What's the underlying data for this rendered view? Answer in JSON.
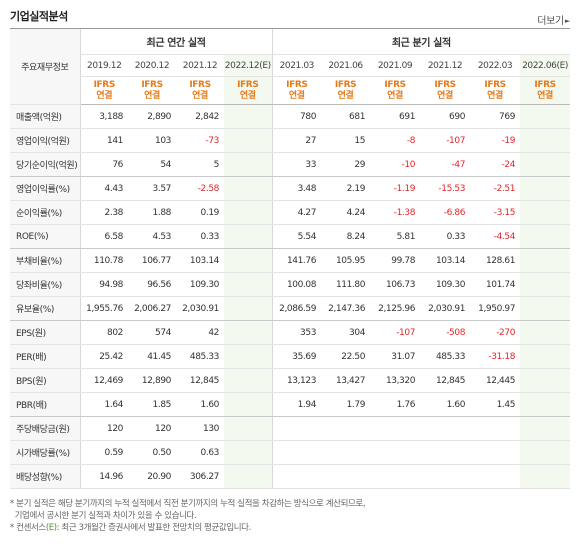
{
  "title": "기업실적분석",
  "more_label": "더보기",
  "header": {
    "row_head": "주요재무정보",
    "annual_label": "최근 연간 실적",
    "quarterly_label": "최근 분기 실적",
    "annual_periods": [
      "2019.12",
      "2020.12",
      "2021.12",
      "2022.12(E)"
    ],
    "quarterly_periods": [
      "2021.03",
      "2021.06",
      "2021.09",
      "2021.12",
      "2022.03",
      "2022.06(E)"
    ],
    "standard_top": "IFRS",
    "standard_bottom": "연결"
  },
  "rows": [
    {
      "label": "매출액(억원)",
      "values": [
        "3,188",
        "2,890",
        "2,842",
        "",
        "780",
        "681",
        "691",
        "690",
        "769",
        ""
      ]
    },
    {
      "label": "영업이익(억원)",
      "values": [
        "141",
        "103",
        "-73",
        "",
        "27",
        "15",
        "-8",
        "-107",
        "-19",
        ""
      ]
    },
    {
      "label": "당기순이익(억원)",
      "values": [
        "76",
        "54",
        "5",
        "",
        "33",
        "29",
        "-10",
        "-47",
        "-24",
        ""
      ]
    },
    {
      "label": "영업이익률(%)",
      "values": [
        "4.43",
        "3.57",
        "-2.58",
        "",
        "3.48",
        "2.19",
        "-1.19",
        "-15.53",
        "-2.51",
        ""
      ]
    },
    {
      "label": "순이익률(%)",
      "values": [
        "2.38",
        "1.88",
        "0.19",
        "",
        "4.27",
        "4.24",
        "-1.38",
        "-6.86",
        "-3.15",
        ""
      ]
    },
    {
      "label": "ROE(%)",
      "values": [
        "6.58",
        "4.53",
        "0.33",
        "",
        "5.54",
        "8.24",
        "5.81",
        "0.33",
        "-4.54",
        ""
      ]
    },
    {
      "label": "부채비율(%)",
      "values": [
        "110.78",
        "106.77",
        "103.14",
        "",
        "141.76",
        "105.95",
        "99.78",
        "103.14",
        "128.61",
        ""
      ]
    },
    {
      "label": "당좌비율(%)",
      "values": [
        "94.98",
        "96.56",
        "109.30",
        "",
        "100.08",
        "111.80",
        "106.73",
        "109.30",
        "101.74",
        ""
      ]
    },
    {
      "label": "유보율(%)",
      "values": [
        "1,955.76",
        "2,006.27",
        "2,030.91",
        "",
        "2,086.59",
        "2,147.36",
        "2,125.96",
        "2,030.91",
        "1,950.97",
        ""
      ]
    },
    {
      "label": "EPS(원)",
      "values": [
        "802",
        "574",
        "42",
        "",
        "353",
        "304",
        "-107",
        "-508",
        "-270",
        ""
      ]
    },
    {
      "label": "PER(배)",
      "values": [
        "25.42",
        "41.45",
        "485.33",
        "",
        "35.69",
        "22.50",
        "31.07",
        "485.33",
        "-31.18",
        ""
      ]
    },
    {
      "label": "BPS(원)",
      "values": [
        "12,469",
        "12,890",
        "12,845",
        "",
        "13,123",
        "13,427",
        "13,320",
        "12,845",
        "12,445",
        ""
      ]
    },
    {
      "label": "PBR(배)",
      "values": [
        "1.64",
        "1.85",
        "1.60",
        "",
        "1.94",
        "1.79",
        "1.76",
        "1.60",
        "1.45",
        ""
      ]
    },
    {
      "label": "주당배당금(원)",
      "values": [
        "120",
        "120",
        "130",
        "",
        "",
        "",
        "",
        "",
        "",
        ""
      ]
    },
    {
      "label": "시가배당률(%)",
      "values": [
        "0.59",
        "0.50",
        "0.63",
        "",
        "",
        "",
        "",
        "",
        "",
        ""
      ]
    },
    {
      "label": "배당성향(%)",
      "values": [
        "14.96",
        "20.90",
        "306.27",
        "",
        "",
        "",
        "",
        "",
        "",
        ""
      ]
    }
  ],
  "notes": {
    "line1": "분기 실적은 해당 분기까지의 누적 실적에서 직전 분기까지의 누적 실적을 차감하는 방식으로 계산되므로,",
    "line2": "기업에서 공시한 분기 실적과 차이가 있을 수 있습니다.",
    "line3_prefix": "컨센서스",
    "line3_mark": "(E)",
    "line3_suffix": ": 최근 3개월간 증권사에서 발표한 전망치의 평균값입니다."
  },
  "colors": {
    "negative": "#e0262d",
    "ifrs": "#e57a1a",
    "estimate": "#4f9a2d",
    "estimate_bg": "#f3f9ef"
  }
}
